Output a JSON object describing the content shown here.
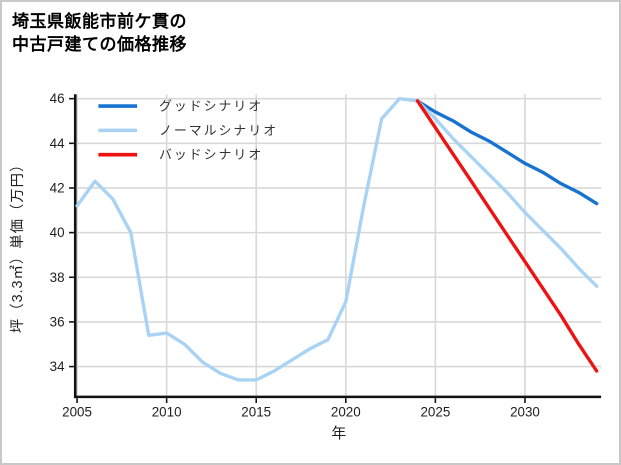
{
  "title": {
    "line1": "埼玉県飯能市前ケ貫の",
    "line2": "中古戸建ての価格推移"
  },
  "colors": {
    "good": "#1673d0",
    "normal": "#a9d3f4",
    "bad": "#ef1212",
    "history": "#a9d3f4",
    "grid": "#d8d8d8",
    "axis": "#111111",
    "tick_label": "#1f1f1f",
    "legend_label": "#333333",
    "background": "#ffffff",
    "frame_border": "#c8c8c8"
  },
  "legend": {
    "items": [
      {
        "id": "good",
        "label": "グッドシナリオ"
      },
      {
        "id": "normal",
        "label": "ノーマルシナリオ"
      },
      {
        "id": "bad",
        "label": "バッドシナリオ"
      }
    ]
  },
  "chart_data": {
    "type": "line",
    "title": "埼玉県飯能市前ケ貫の中古戸建ての価格推移",
    "xlabel": "年",
    "ylabel": "坪（3.3㎡）単価（万円）",
    "xlim": [
      2004.97,
      2034.25
    ],
    "ylim": [
      32.7,
      46.2
    ],
    "xticks": [
      2005,
      2010,
      2015,
      2020,
      2025,
      2030
    ],
    "yticks": [
      34,
      36,
      38,
      40,
      42,
      44,
      46
    ],
    "grid": true,
    "legend_position": "upper-left",
    "series": [
      {
        "id": "history",
        "name": "",
        "color_ref": "history",
        "x": [
          2005,
          2006,
          2007,
          2008,
          2009,
          2010,
          2011,
          2012,
          2013,
          2014,
          2015,
          2016,
          2017,
          2018,
          2019,
          2020,
          2021,
          2022,
          2023,
          2024
        ],
        "y": [
          41.2,
          42.3,
          41.5,
          40.0,
          35.4,
          35.5,
          35.0,
          34.2,
          33.7,
          33.4,
          33.4,
          33.8,
          34.3,
          34.8,
          35.2,
          36.9,
          41.2,
          45.1,
          46.0,
          45.9
        ]
      },
      {
        "id": "good",
        "name": "グッドシナリオ",
        "color_ref": "good",
        "x": [
          2024,
          2025,
          2026,
          2027,
          2028,
          2029,
          2030,
          2031,
          2032,
          2033,
          2034
        ],
        "y": [
          45.9,
          45.4,
          45.0,
          44.5,
          44.1,
          43.6,
          43.1,
          42.7,
          42.2,
          41.8,
          41.3
        ]
      },
      {
        "id": "normal",
        "name": "ノーマルシナリオ",
        "color_ref": "normal",
        "x": [
          2024,
          2025,
          2026,
          2027,
          2028,
          2029,
          2030,
          2031,
          2032,
          2033,
          2034
        ],
        "y": [
          45.9,
          45.1,
          44.2,
          43.4,
          42.6,
          41.8,
          40.9,
          40.1,
          39.3,
          38.4,
          37.6
        ]
      },
      {
        "id": "bad",
        "name": "バッドシナリオ",
        "color_ref": "bad",
        "x": [
          2024,
          2025,
          2026,
          2027,
          2028,
          2029,
          2030,
          2031,
          2032,
          2033,
          2034
        ],
        "y": [
          45.9,
          44.7,
          43.5,
          42.3,
          41.1,
          39.9,
          38.7,
          37.5,
          36.3,
          35.0,
          33.8
        ]
      }
    ]
  }
}
